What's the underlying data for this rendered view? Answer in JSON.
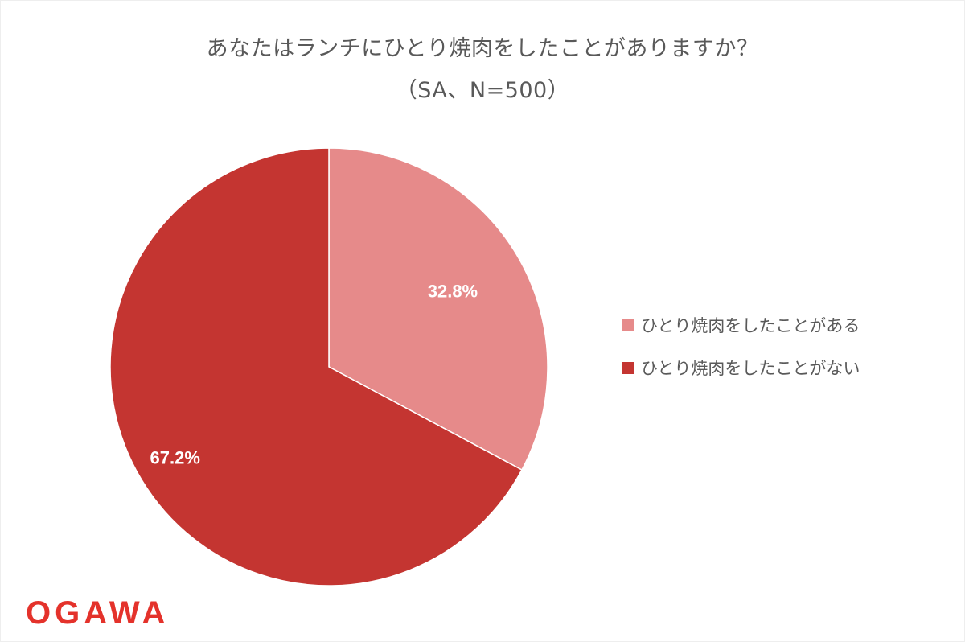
{
  "chart_data": {
    "type": "pie",
    "title": "あなたはランチにひとり焼肉をしたことがありますか？",
    "subtitle": "（SA、N=500）",
    "categories": [
      "ひとり焼肉をしたことがある",
      "ひとり焼肉をしたことがない"
    ],
    "values": [
      32.8,
      67.2
    ],
    "value_labels": [
      "32.8%",
      "67.2%"
    ],
    "colors": [
      "#e68a8a",
      "#c43531"
    ],
    "legend_position": "right",
    "start_angle": "top, clockwise"
  },
  "logo": {
    "text": "OGAWA",
    "color": "#e4322b"
  }
}
